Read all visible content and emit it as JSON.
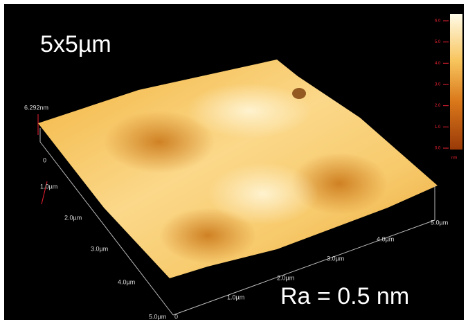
{
  "title": "5x5µm",
  "annotation": "Ra = 0.5 nm",
  "z_axis": {
    "max_label": "6.292nm",
    "zero_label": "0"
  },
  "left_axis": {
    "labels": [
      "1.0µm",
      "2.0µm",
      "3.0µm",
      "4.0µm",
      "5.0µm"
    ]
  },
  "bottom_axis": {
    "origin_label": "0",
    "labels": [
      "1.0µm",
      "2.0µm",
      "3.0µm",
      "4.0µm",
      "5.0µm"
    ]
  },
  "colorbar": {
    "ticks": [
      "6.0",
      "5.0",
      "4.0",
      "3.0",
      "2.0",
      "1.0",
      "0.0"
    ],
    "unit": "nm"
  }
}
